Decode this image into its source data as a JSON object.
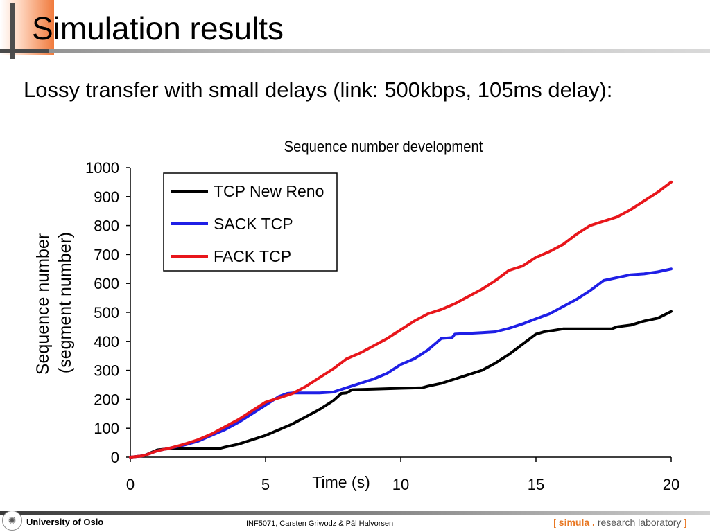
{
  "slide": {
    "title": "Simulation results",
    "subtitle": "Lossy transfer with small delays (link: 500kbps, 105ms delay):"
  },
  "footer": {
    "university": "University of Oslo",
    "course": "INF5071, Carsten Griwodz & Pål Halvorsen",
    "lab_open": "[",
    "lab_name": "simula",
    "lab_dot": ".",
    "lab_rest": "research laboratory",
    "lab_close": "]"
  },
  "colors": {
    "title_accent": "#f07a3c",
    "brand_orange": "#e87722"
  },
  "chart_data": {
    "type": "line",
    "title": "Sequence number development",
    "xlabel": "Time (s)",
    "ylabel": [
      "Sequence number",
      "(segment number)"
    ],
    "xlim": [
      0,
      20
    ],
    "ylim": [
      0,
      1000
    ],
    "xticks": [
      0,
      5,
      10,
      15,
      20
    ],
    "yticks": [
      0,
      100,
      200,
      300,
      400,
      500,
      600,
      700,
      800,
      900,
      1000
    ],
    "grid": false,
    "legend_position": "top-left",
    "series": [
      {
        "name": "TCP New  Reno",
        "color": "#000000",
        "points": [
          [
            0,
            0
          ],
          [
            0.5,
            5
          ],
          [
            1,
            25
          ],
          [
            1.5,
            30
          ],
          [
            2,
            30
          ],
          [
            2.5,
            30
          ],
          [
            3,
            30
          ],
          [
            3.3,
            30
          ],
          [
            3.5,
            35
          ],
          [
            4,
            45
          ],
          [
            4.5,
            60
          ],
          [
            5,
            75
          ],
          [
            5.5,
            95
          ],
          [
            6,
            115
          ],
          [
            6.5,
            140
          ],
          [
            7,
            165
          ],
          [
            7.5,
            195
          ],
          [
            7.8,
            220
          ],
          [
            8,
            222
          ],
          [
            8.2,
            233
          ],
          [
            9,
            235
          ],
          [
            10,
            238
          ],
          [
            10.8,
            240
          ],
          [
            11,
            245
          ],
          [
            11.5,
            255
          ],
          [
            12,
            270
          ],
          [
            12.5,
            285
          ],
          [
            13,
            300
          ],
          [
            13.5,
            325
          ],
          [
            14,
            355
          ],
          [
            14.5,
            390
          ],
          [
            15,
            425
          ],
          [
            15.3,
            433
          ],
          [
            15.6,
            437
          ],
          [
            16,
            443
          ],
          [
            17,
            443
          ],
          [
            17.5,
            443
          ],
          [
            17.8,
            443
          ],
          [
            18,
            450
          ],
          [
            18.5,
            456
          ],
          [
            19,
            470
          ],
          [
            19.5,
            480
          ],
          [
            20,
            503
          ]
        ]
      },
      {
        "name": "SACK TCP",
        "color": "#1f1fe6",
        "points": [
          [
            0,
            0
          ],
          [
            0.5,
            5
          ],
          [
            1,
            22
          ],
          [
            1.5,
            32
          ],
          [
            2,
            42
          ],
          [
            2.5,
            55
          ],
          [
            3,
            75
          ],
          [
            3.5,
            95
          ],
          [
            4,
            120
          ],
          [
            4.5,
            150
          ],
          [
            5,
            180
          ],
          [
            5.5,
            210
          ],
          [
            5.8,
            220
          ],
          [
            6,
            222
          ],
          [
            7,
            222
          ],
          [
            7.5,
            225
          ],
          [
            8,
            240
          ],
          [
            8.5,
            255
          ],
          [
            9,
            270
          ],
          [
            9.5,
            290
          ],
          [
            10,
            320
          ],
          [
            10.5,
            340
          ],
          [
            11,
            370
          ],
          [
            11.5,
            410
          ],
          [
            11.9,
            413
          ],
          [
            12,
            425
          ],
          [
            13,
            430
          ],
          [
            13.5,
            433
          ],
          [
            14,
            445
          ],
          [
            14.5,
            460
          ],
          [
            15,
            478
          ],
          [
            15.5,
            495
          ],
          [
            16,
            520
          ],
          [
            16.5,
            545
          ],
          [
            17,
            575
          ],
          [
            17.5,
            610
          ],
          [
            18,
            620
          ],
          [
            18.5,
            630
          ],
          [
            19,
            633
          ],
          [
            19.5,
            640
          ],
          [
            20,
            650
          ]
        ]
      },
      {
        "name": "FACK TCP",
        "color": "#e8161b",
        "points": [
          [
            0,
            0
          ],
          [
            0.5,
            5
          ],
          [
            1,
            22
          ],
          [
            1.5,
            32
          ],
          [
            2,
            45
          ],
          [
            2.5,
            60
          ],
          [
            3,
            80
          ],
          [
            3.5,
            105
          ],
          [
            4,
            130
          ],
          [
            4.5,
            160
          ],
          [
            5,
            190
          ],
          [
            5.5,
            205
          ],
          [
            6,
            220
          ],
          [
            6.5,
            245
          ],
          [
            7,
            275
          ],
          [
            7.5,
            305
          ],
          [
            8,
            340
          ],
          [
            8.5,
            360
          ],
          [
            9,
            385
          ],
          [
            9.5,
            410
          ],
          [
            10,
            440
          ],
          [
            10.5,
            470
          ],
          [
            11,
            495
          ],
          [
            11.5,
            510
          ],
          [
            12,
            530
          ],
          [
            12.5,
            555
          ],
          [
            13,
            580
          ],
          [
            13.5,
            610
          ],
          [
            14,
            645
          ],
          [
            14.5,
            660
          ],
          [
            15,
            690
          ],
          [
            15.5,
            710
          ],
          [
            16,
            735
          ],
          [
            16.5,
            770
          ],
          [
            17,
            800
          ],
          [
            17.5,
            815
          ],
          [
            18,
            830
          ],
          [
            18.5,
            855
          ],
          [
            19,
            885
          ],
          [
            19.5,
            915
          ],
          [
            20,
            950
          ]
        ]
      }
    ]
  }
}
